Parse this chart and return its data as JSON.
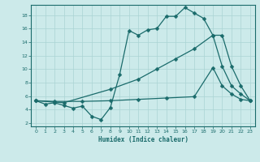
{
  "xlabel": "Humidex (Indice chaleur)",
  "bg_color": "#cceaea",
  "line_color": "#1a6b6b",
  "grid_color": "#aad4d4",
  "xlim": [
    -0.5,
    23.5
  ],
  "ylim": [
    1.5,
    19.5
  ],
  "xticks": [
    0,
    1,
    2,
    3,
    4,
    5,
    6,
    7,
    8,
    9,
    10,
    11,
    12,
    13,
    14,
    15,
    16,
    17,
    18,
    19,
    20,
    21,
    22,
    23
  ],
  "yticks": [
    2,
    4,
    6,
    8,
    10,
    12,
    14,
    16,
    18
  ],
  "line1_x": [
    0,
    1,
    2,
    3,
    4,
    5,
    6,
    7,
    8,
    9,
    10,
    11,
    12,
    13,
    14,
    15,
    16,
    17,
    18,
    19,
    20,
    21,
    22,
    23
  ],
  "line1_y": [
    5.3,
    4.8,
    5.0,
    4.6,
    4.2,
    4.5,
    3.0,
    2.5,
    4.3,
    9.2,
    15.7,
    15.0,
    15.8,
    16.0,
    17.8,
    17.8,
    19.1,
    18.3,
    17.5,
    15.0,
    10.4,
    7.5,
    6.3,
    5.3
  ],
  "line2_x": [
    0,
    3,
    8,
    11,
    13,
    15,
    17,
    19,
    20,
    21,
    22,
    23
  ],
  "line2_y": [
    5.3,
    5.0,
    7.0,
    8.5,
    10.0,
    11.5,
    13.0,
    15.0,
    15.0,
    10.4,
    7.5,
    5.3
  ],
  "line3_x": [
    0,
    2,
    5,
    8,
    11,
    14,
    17,
    19,
    20,
    21,
    22,
    23
  ],
  "line3_y": [
    5.3,
    5.2,
    5.2,
    5.3,
    5.5,
    5.7,
    5.9,
    10.2,
    7.5,
    6.3,
    5.5,
    5.3
  ]
}
